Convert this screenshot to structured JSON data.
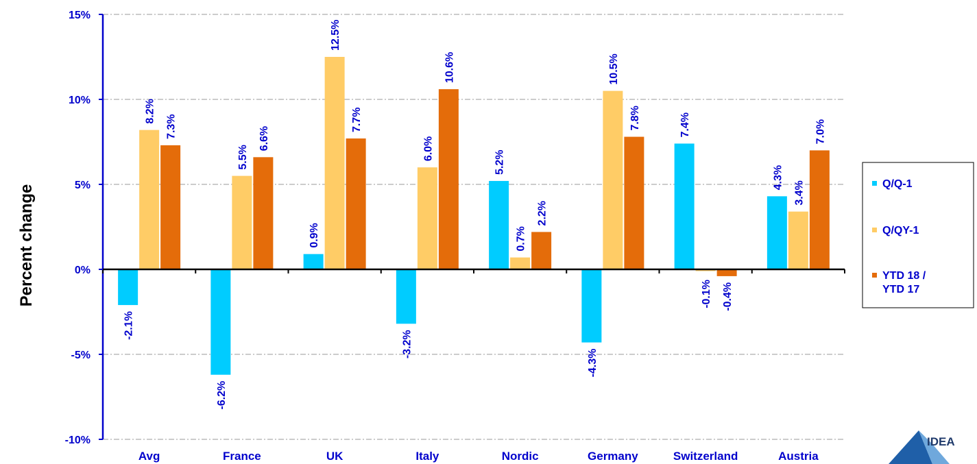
{
  "chart_data": {
    "type": "bar",
    "ylabel": "Percent change",
    "ylim": [
      -10,
      15
    ],
    "yticks": [
      -10,
      -5,
      0,
      5,
      10,
      15
    ],
    "ytick_labels": [
      "-10%",
      "-5%",
      "0%",
      "5%",
      "10%",
      "15%"
    ],
    "grid": true,
    "legend_position": "right",
    "categories": [
      "Avg",
      "France",
      "UK",
      "Italy",
      "Nordic",
      "Germany",
      "Switzerland",
      "Austria"
    ],
    "series": [
      {
        "name": "Q/Q-1",
        "color": "#00CCFF",
        "values": [
          -2.1,
          -6.2,
          0.9,
          -3.2,
          5.2,
          -4.3,
          7.4,
          4.3
        ],
        "labels": [
          "-2.1%",
          "-6.2%",
          "0.9%",
          "-3.2%",
          "5.2%",
          "-4.3%",
          "7.4%",
          "4.3%"
        ]
      },
      {
        "name": "Q/QY-1",
        "color": "#FFCC66",
        "values": [
          8.2,
          5.5,
          12.5,
          6.0,
          0.7,
          10.5,
          -0.1,
          3.4
        ],
        "labels": [
          "8.2%",
          "5.5%",
          "12.5%",
          "6.0%",
          "0.7%",
          "10.5%",
          "-0.1%",
          "3.4%"
        ]
      },
      {
        "name": "YTD 18 / YTD 17",
        "legend_lines": [
          "YTD 18 /",
          "YTD 17"
        ],
        "color": "#E46C0A",
        "values": [
          7.3,
          6.6,
          7.7,
          10.6,
          2.2,
          7.8,
          -0.4,
          7.0
        ],
        "labels": [
          "7.3%",
          "6.6%",
          "7.7%",
          "10.6%",
          "2.2%",
          "7.8%",
          "-0.4%",
          "7.0%"
        ]
      }
    ],
    "label_color": "#0000CC",
    "axis_color": "#0000CC"
  },
  "logo": {
    "text": "IDEA",
    "icon": "idea-logo-mark",
    "color": "#1F5FA8"
  }
}
